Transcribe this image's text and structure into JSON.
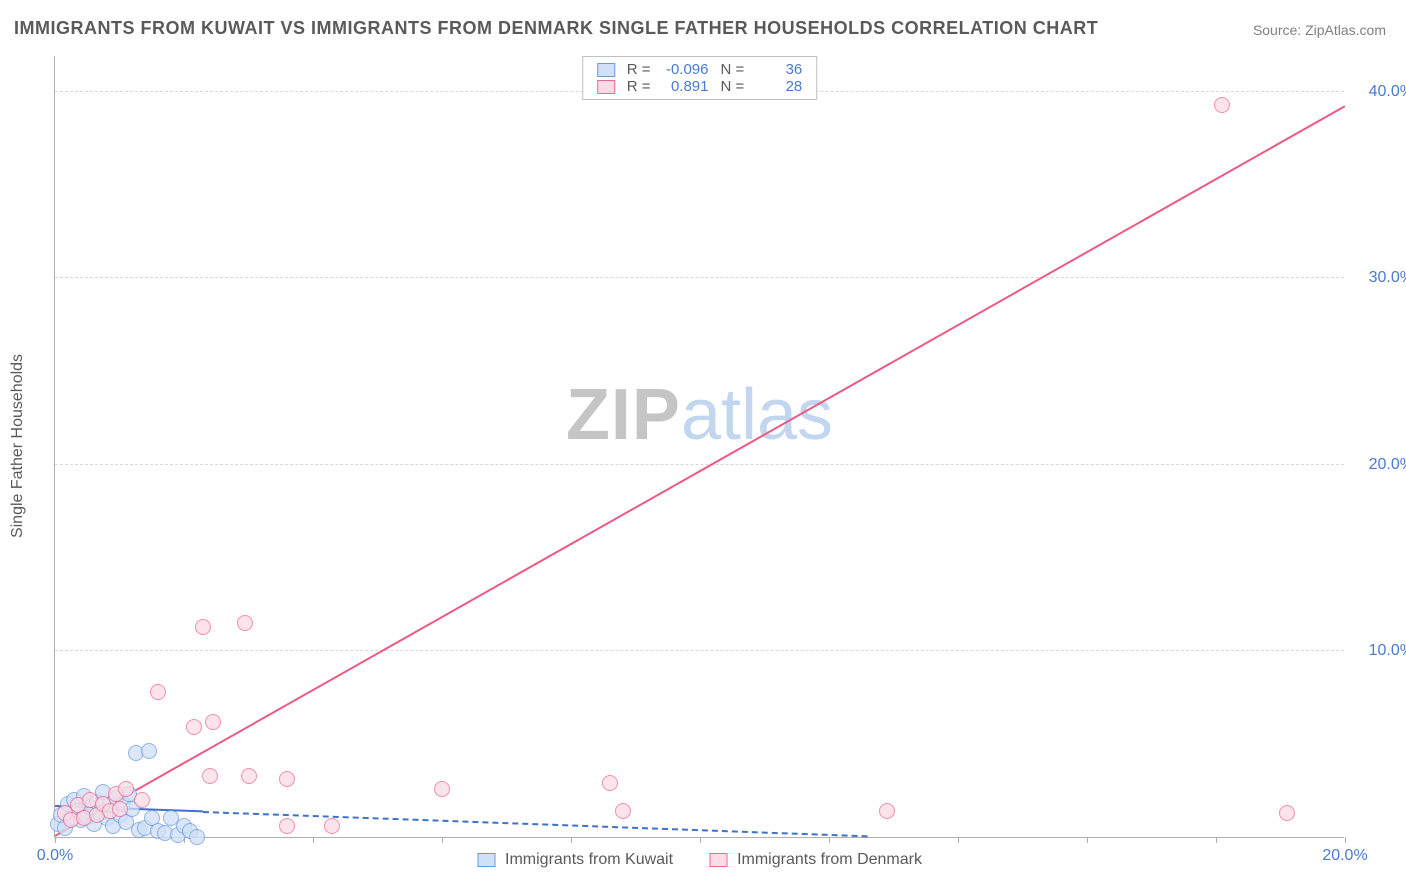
{
  "title": "IMMIGRANTS FROM KUWAIT VS IMMIGRANTS FROM DENMARK SINGLE FATHER HOUSEHOLDS CORRELATION CHART",
  "source": "Source: ZipAtlas.com",
  "watermark": {
    "zip": "ZIP",
    "atlas": "atlas"
  },
  "ylabel": "Single Father Households",
  "chart": {
    "type": "scatter",
    "xlim": [
      0,
      20
    ],
    "ylim": [
      0,
      42
    ],
    "x_ticks": [
      0,
      2,
      4,
      6,
      8,
      10,
      12,
      14,
      16,
      18,
      20
    ],
    "x_tick_labels": {
      "0": "0.0%",
      "20": "20.0%"
    },
    "y_gridlines": [
      10,
      20,
      30,
      40
    ],
    "y_tick_labels": {
      "10": "10.0%",
      "20": "20.0%",
      "30": "30.0%",
      "40": "40.0%"
    },
    "background_color": "#ffffff",
    "grid_color": "#d8d8d8",
    "axis_color": "#b0b0b0",
    "tick_label_color": "#4a7bd0",
    "label_color": "#5a5a5a",
    "series": [
      {
        "id": "kuwait",
        "label": "Immigrants from Kuwait",
        "color_fill": "#cfe0f7",
        "color_stroke": "#6a9be0",
        "marker_radius": 8,
        "marker_opacity": 0.75,
        "R": "-0.096",
        "N": "36",
        "trend": {
          "x1": 0,
          "y1": 1.6,
          "x2": 12.6,
          "y2": 0,
          "solid_until_x": 2.3,
          "width": 2,
          "color": "#3e72c9"
        },
        "points": [
          [
            0.05,
            0.7
          ],
          [
            0.1,
            1.2
          ],
          [
            0.15,
            0.5
          ],
          [
            0.2,
            1.8
          ],
          [
            0.25,
            1.0
          ],
          [
            0.3,
            2.0
          ],
          [
            0.35,
            1.4
          ],
          [
            0.4,
            0.9
          ],
          [
            0.45,
            2.2
          ],
          [
            0.5,
            1.1
          ],
          [
            0.55,
            1.6
          ],
          [
            0.6,
            0.7
          ],
          [
            0.65,
            1.9
          ],
          [
            0.7,
            1.3
          ],
          [
            0.75,
            2.4
          ],
          [
            0.8,
            1.0
          ],
          [
            0.85,
            1.7
          ],
          [
            0.9,
            0.6
          ],
          [
            0.95,
            2.1
          ],
          [
            1.0,
            1.2
          ],
          [
            1.05,
            1.8
          ],
          [
            1.1,
            0.8
          ],
          [
            1.15,
            2.3
          ],
          [
            1.2,
            1.5
          ],
          [
            1.3,
            0.4
          ],
          [
            1.4,
            0.5
          ],
          [
            1.5,
            1.0
          ],
          [
            1.6,
            0.3
          ],
          [
            1.7,
            0.2
          ],
          [
            1.8,
            1.0
          ],
          [
            1.9,
            0.1
          ],
          [
            2.0,
            0.6
          ],
          [
            1.25,
            4.5
          ],
          [
            1.45,
            4.6
          ],
          [
            2.1,
            0.3
          ],
          [
            2.2,
            0.0
          ]
        ]
      },
      {
        "id": "denmark",
        "label": "Immigrants from Denmark",
        "color_fill": "#fbdbe4",
        "color_stroke": "#ec6a8f",
        "marker_radius": 8,
        "marker_opacity": 0.75,
        "R": "0.891",
        "N": "28",
        "trend": {
          "x1": 0,
          "y1": 0,
          "x2": 20,
          "y2": 39.2,
          "solid_until_x": 20,
          "width": 2,
          "color": "#ec5a82"
        },
        "points": [
          [
            0.15,
            1.3
          ],
          [
            0.25,
            0.9
          ],
          [
            0.35,
            1.7
          ],
          [
            0.45,
            1.0
          ],
          [
            0.55,
            2.0
          ],
          [
            0.65,
            1.2
          ],
          [
            0.75,
            1.8
          ],
          [
            0.85,
            1.4
          ],
          [
            0.95,
            2.3
          ],
          [
            1.0,
            1.5
          ],
          [
            1.1,
            2.6
          ],
          [
            1.6,
            7.8
          ],
          [
            2.15,
            5.9
          ],
          [
            2.3,
            11.3
          ],
          [
            2.45,
            6.2
          ],
          [
            2.95,
            11.5
          ],
          [
            2.4,
            3.3
          ],
          [
            3.0,
            3.3
          ],
          [
            3.6,
            3.1
          ],
          [
            3.6,
            0.6
          ],
          [
            4.3,
            0.6
          ],
          [
            6.0,
            2.6
          ],
          [
            8.6,
            2.9
          ],
          [
            8.8,
            1.4
          ],
          [
            12.9,
            1.4
          ],
          [
            18.1,
            39.3
          ],
          [
            19.1,
            1.3
          ],
          [
            1.35,
            2.0
          ]
        ]
      }
    ]
  },
  "stats_box": {
    "labels": {
      "R": "R =",
      "N": "N ="
    }
  },
  "legend": {
    "items": [
      {
        "label": "Immigrants from Kuwait",
        "fill": "#cfe0f7",
        "stroke": "#6a9be0"
      },
      {
        "label": "Immigrants from Denmark",
        "fill": "#fbdbe4",
        "stroke": "#ec6a8f"
      }
    ]
  }
}
